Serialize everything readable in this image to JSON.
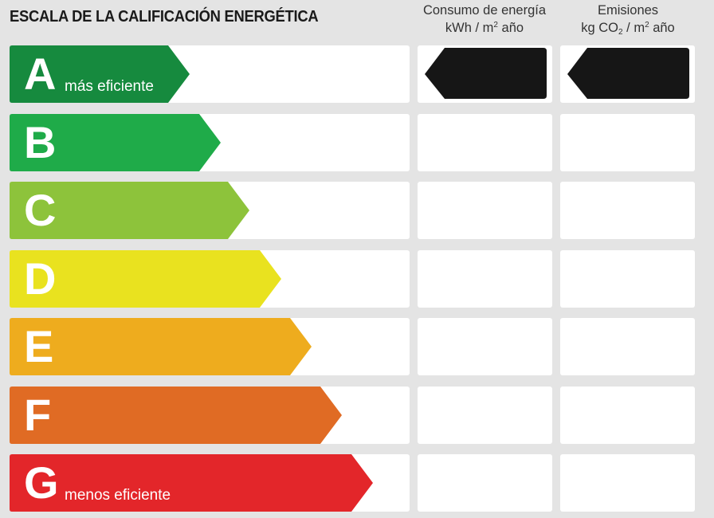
{
  "header": {
    "title": "ESCALA DE LA CALIFICACIÓN ENERGÉTICA",
    "consumo_line1": "Consumo de energía",
    "consumo_line2_a": "kWh / m",
    "consumo_line2_sup": "2",
    "consumo_line2_b": " año",
    "emisiones_line1": "Emisiones",
    "emisiones_line2_a": "kg CO",
    "emisiones_line2_sub": "2",
    "emisiones_line2_b": " / m",
    "emisiones_line2_sup": "2",
    "emisiones_line2_c": " año"
  },
  "ratings": [
    {
      "letter": "A",
      "label": "más eficiente",
      "color": "#168a3e"
    },
    {
      "letter": "B",
      "label": "",
      "color": "#1fab49"
    },
    {
      "letter": "C",
      "label": "",
      "color": "#8dc33b"
    },
    {
      "letter": "D",
      "label": "",
      "color": "#e9e21f"
    },
    {
      "letter": "E",
      "label": "",
      "color": "#eeac1e"
    },
    {
      "letter": "F",
      "label": "",
      "color": "#e06b24"
    },
    {
      "letter": "G",
      "label": "menos eficiente",
      "color": "#e3262a"
    }
  ],
  "selected": {
    "consumo_rating": "A",
    "emisiones_rating": "A",
    "indicator_color": "#161616"
  }
}
